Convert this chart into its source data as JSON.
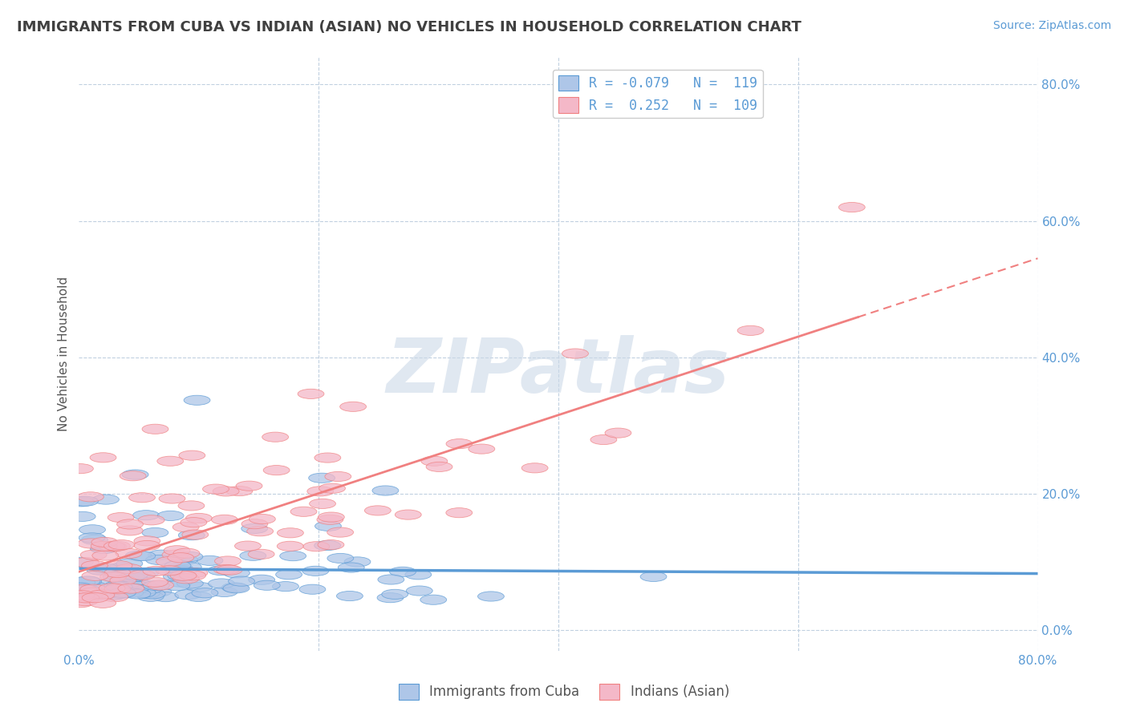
{
  "title": "IMMIGRANTS FROM CUBA VS INDIAN (ASIAN) NO VEHICLES IN HOUSEHOLD CORRELATION CHART",
  "source": "Source: ZipAtlas.com",
  "ylabel": "No Vehicles in Household",
  "watermark": "ZIPatlas",
  "watermark_color": "#ccd9e8",
  "blue_color": "#5b9bd5",
  "pink_color": "#f08080",
  "blue_fill": "#aec6e8",
  "pink_fill": "#f4b8c8",
  "background_color": "#ffffff",
  "grid_color": "#c0d0e0",
  "title_color": "#404040",
  "axis_color": "#5b9bd5",
  "xmin": 0.0,
  "xmax": 0.8,
  "ymin": -0.03,
  "ymax": 0.84,
  "n_blue": 119,
  "n_pink": 109
}
